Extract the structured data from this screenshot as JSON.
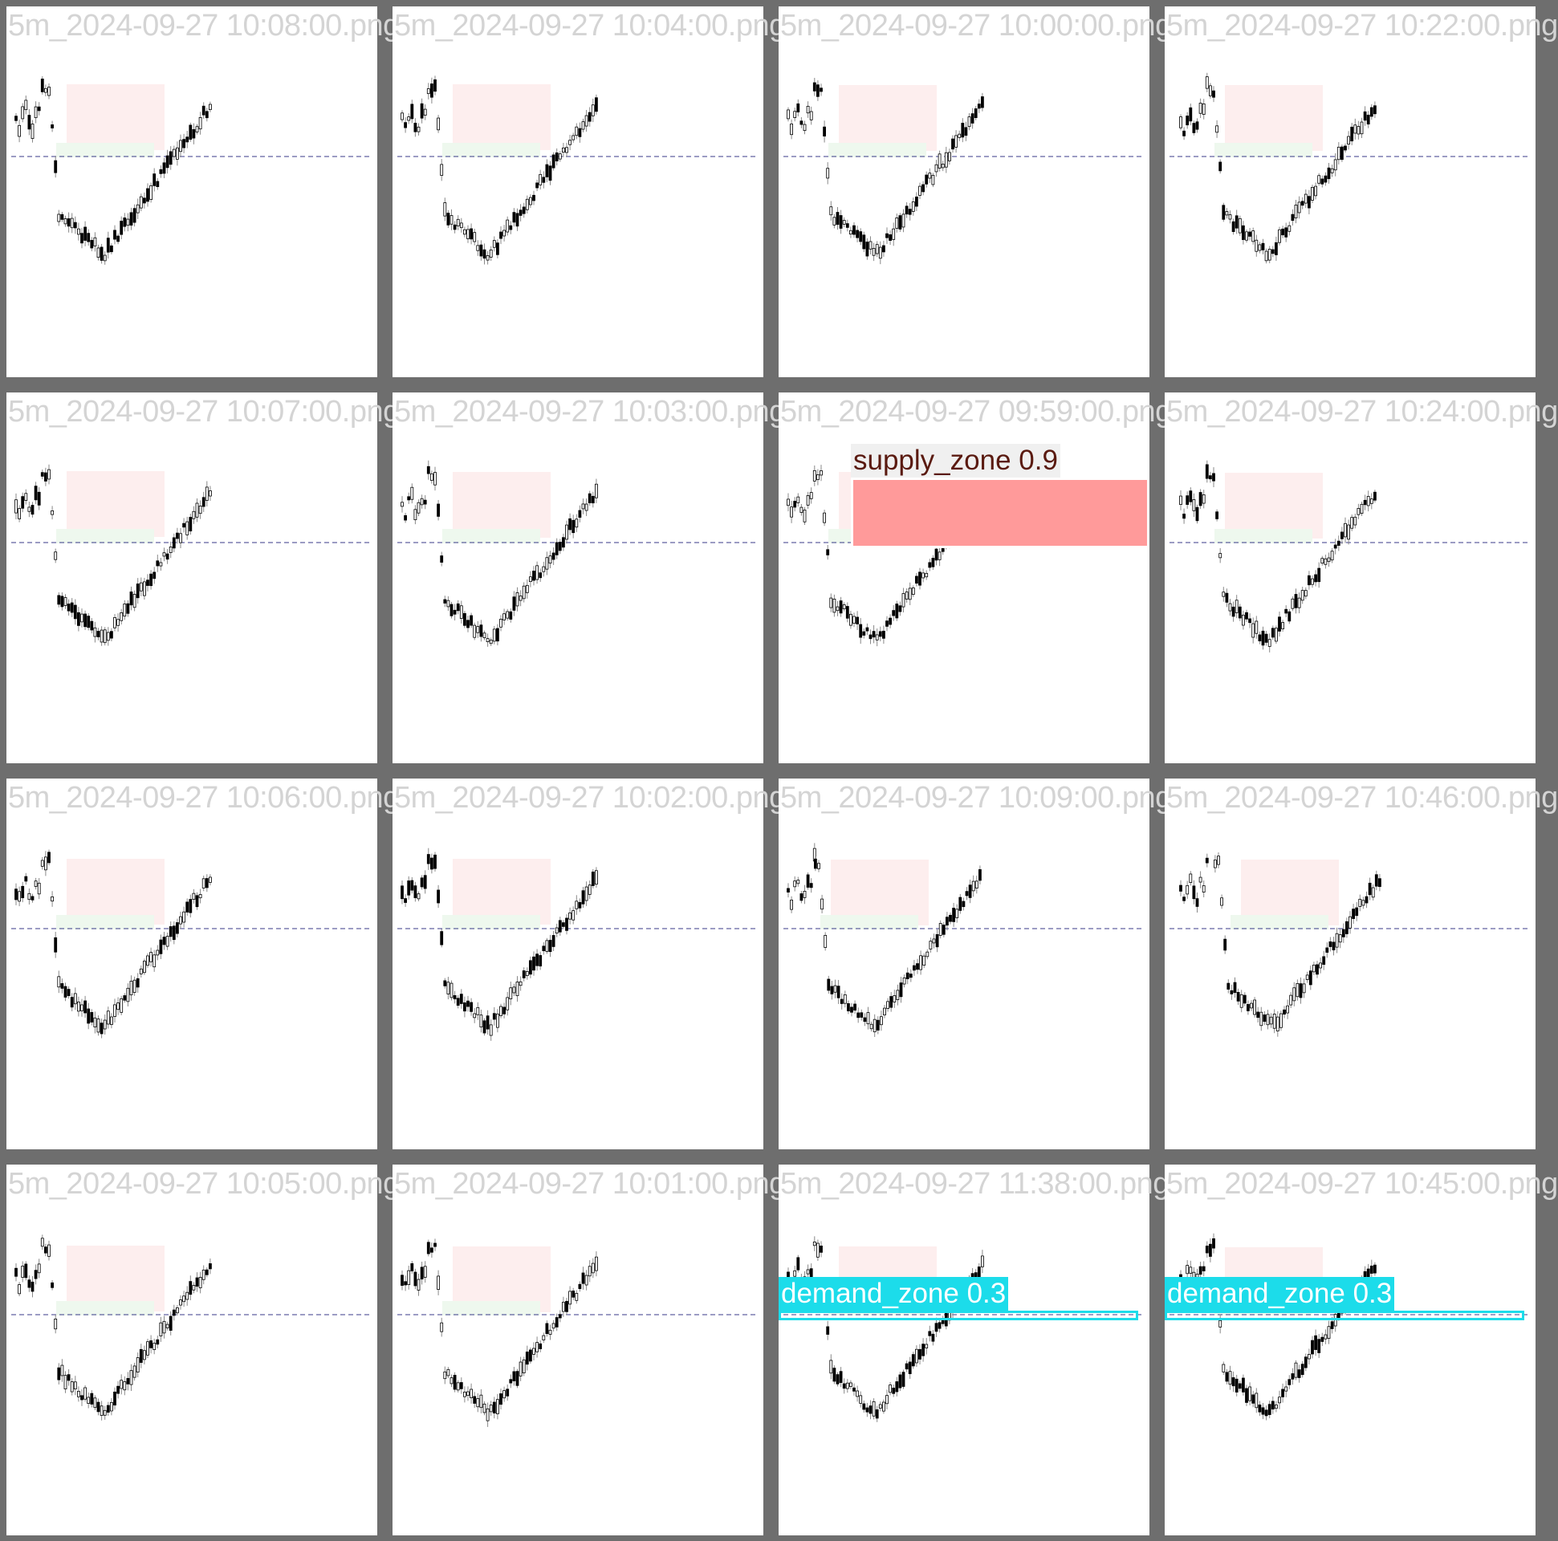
{
  "panels": [
    {
      "file": "5m_2024-09-27 10:08:00.png"
    },
    {
      "file": "5m_2024-09-27 10:04:00.png"
    },
    {
      "file": "5m_2024-09-27 10:00:00.png"
    },
    {
      "file": "5m_2024-09-27 10:22:00.png"
    },
    {
      "file": "5m_2024-09-27 10:07:00.png"
    },
    {
      "file": "5m_2024-09-27 10:03:00.png"
    },
    {
      "file": "5m_2024-09-27 09:59:00.png",
      "detection": {
        "label": "supply_zone 0.9",
        "class": "supply_zone",
        "score": 0.9,
        "box_color": "#ff9a9a",
        "label_bg": "#f0f0f0",
        "label_color": "#5a1a10"
      }
    },
    {
      "file": "5m_2024-09-27 10:24:00.png"
    },
    {
      "file": "5m_2024-09-27 10:06:00.png"
    },
    {
      "file": "5m_2024-09-27 10:02:00.png"
    },
    {
      "file": "5m_2024-09-27 10:09:00.png"
    },
    {
      "file": "5m_2024-09-27 10:46:00.png"
    },
    {
      "file": "5m_2024-09-27 10:05:00.png"
    },
    {
      "file": "5m_2024-09-27 10:01:00.png"
    },
    {
      "file": "5m_2024-09-27 11:38:00.png",
      "detection": {
        "label": "demand_zone 0.3",
        "class": "demand_zone",
        "score": 0.3,
        "box_color": "#1cdcea",
        "label_bg": "#1cdcea",
        "label_color": "#ffffff"
      }
    },
    {
      "file": "5m_2024-09-27 10:45:00.png",
      "detection": {
        "label": "demand_zone 0.3",
        "class": "demand_zone",
        "score": 0.3,
        "box_color": "#1cdcea",
        "label_bg": "#1cdcea",
        "label_color": "#ffffff"
      }
    }
  ],
  "chart_data": {
    "type": "candlestick-grid",
    "title": "",
    "rows": 4,
    "cols": 4,
    "series_shape": [
      0.2,
      0.2,
      0.25,
      0.15,
      0.9,
      0.95,
      0.88,
      0.85,
      0.8,
      0.75,
      0.78,
      0.7,
      0.72,
      0.65,
      0.68,
      0.6,
      0.55,
      0.5,
      0.45,
      0.4,
      0.3,
      0.2,
      0.1,
      0.0
    ],
    "supply_zone_color": "#fdeeee",
    "demand_zone_color": "#eef8ee",
    "price_line_color": "#3a3a8a",
    "candle_color": "#000000",
    "wick_color": "#888888"
  }
}
